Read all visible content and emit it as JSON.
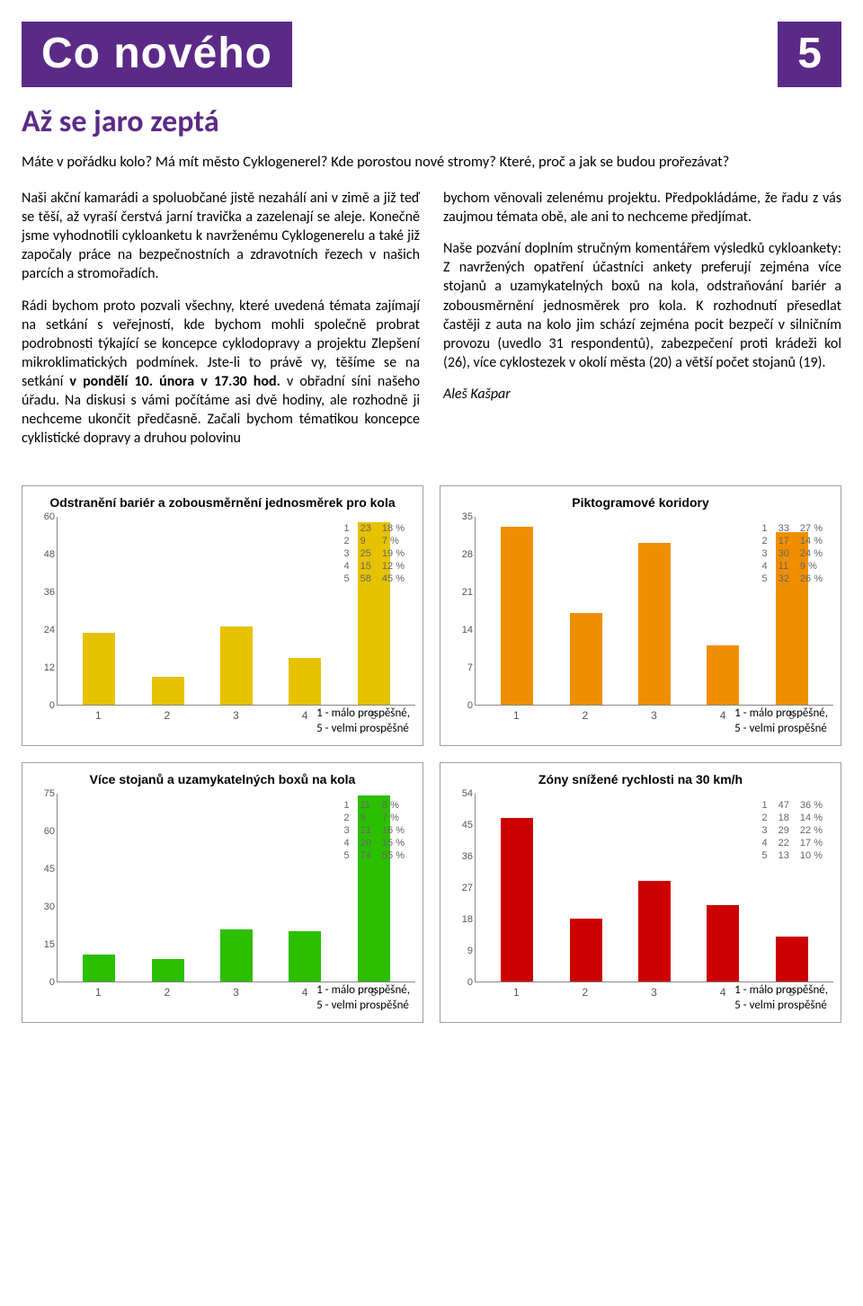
{
  "header": {
    "section_title": "Co nového",
    "page_number": "5",
    "bar_color": "#5b2a86",
    "text_color": "#ffffff"
  },
  "article": {
    "title": "Až se jaro zeptá",
    "title_color": "#5b2a86",
    "lead": "Máte v pořádku kolo? Má mít město Cyklogenerel? Kde porostou nové stromy? Které, proč a jak se budou prořezávat?",
    "p1": "Naši akční kamarádi a spoluobčané jistě nezahálí ani v zimě a již teď se těší, až vyraší čerstvá jarní travička a zazelenají se aleje. Konečně jsme vyhodnotili cykloanketu k navrženému Cyklogenerelu a také již započaly práce na bezpečnostních a zdravotních řezech v našich parcích a stromořadích.",
    "p2_a": "Rádi bychom proto pozvali všechny, které uvedená témata zajímají na setkání s veřejností, kde bychom mohli společně probrat podrobnosti týkající se koncepce cyklodopravy a projektu Zlepšení mikroklimatických podmínek. Jste-li to právě vy, těšíme se na setkání ",
    "p2_b": "v pondělí 10. února v 17.30 hod.",
    "p2_c": " v obřadní síni našeho úřadu. Na diskusi s vámi počítáme asi dvě hodiny, ale rozhodně ji nechceme ukončit předčasně. Začali bychom tématikou koncepce cyklistické dopravy a druhou polovinu",
    "p3": "bychom věnovali zelenému projektu. Předpokládáme, že řadu z vás zaujmou témata obě, ale ani to nechceme předjímat.",
    "p4": "Naše pozvání doplním stručným komentářem výsledků cykloankety: Z navržených opatření účastníci ankety preferují zejména více stojanů a uzamykatelných boxů na kola, odstraňování bariér a zobousměrnění jednosměrek pro kola. K rozhodnutí přesedlat častěji z auta na kolo jim schází zejména pocit bezpečí v silničním provozu (uvedlo 31 respondentů), zabezpečení proti krádeži kol (26), více cyklostezek v okolí města (20) a větší počet stojanů (19).",
    "author": "Aleš Kašpar"
  },
  "legend_text": {
    "line1": "1 - málo prospěšné,",
    "line2": "5 - velmi prospěšné"
  },
  "charts": [
    {
      "title": "Odstranění bariér a zobousměrnění jednosměrek pro kola",
      "type": "bar",
      "bar_color": "#e6c200",
      "ymax": 60,
      "yticks": [
        0,
        12,
        24,
        36,
        48,
        60
      ],
      "categories": [
        "1",
        "2",
        "3",
        "4",
        "5"
      ],
      "values": [
        23,
        9,
        25,
        15,
        58
      ],
      "rows": [
        [
          "1",
          "23",
          "18 %"
        ],
        [
          "2",
          "9",
          "7 %"
        ],
        [
          "3",
          "25",
          "19 %"
        ],
        [
          "4",
          "15",
          "12 %"
        ],
        [
          "5",
          "58",
          "45 %"
        ]
      ]
    },
    {
      "title": "Piktogramové koridory",
      "type": "bar",
      "bar_color": "#ef8f00",
      "ymax": 35,
      "yticks": [
        0,
        7,
        14,
        21,
        28,
        35
      ],
      "categories": [
        "1",
        "2",
        "3",
        "4",
        "5"
      ],
      "values": [
        33,
        17,
        30,
        11,
        32
      ],
      "rows": [
        [
          "1",
          "33",
          "27 %"
        ],
        [
          "2",
          "17",
          "14 %"
        ],
        [
          "3",
          "30",
          "24 %"
        ],
        [
          "4",
          "11",
          "9 %"
        ],
        [
          "5",
          "32",
          "26 %"
        ]
      ]
    },
    {
      "title": "Více stojanů a uzamykatelných boxů na kola",
      "type": "bar",
      "bar_color": "#2bbf00",
      "ymax": 75,
      "yticks": [
        0,
        15,
        30,
        45,
        60,
        75
      ],
      "categories": [
        "1",
        "2",
        "3",
        "4",
        "5"
      ],
      "values": [
        11,
        9,
        21,
        20,
        74
      ],
      "rows": [
        [
          "1",
          "11",
          "8 %"
        ],
        [
          "2",
          "9",
          "7 %"
        ],
        [
          "3",
          "21",
          "16 %"
        ],
        [
          "4",
          "20",
          "15 %"
        ],
        [
          "5",
          "74",
          "55 %"
        ]
      ]
    },
    {
      "title": "Zóny snížené rychlosti na 30 km/h",
      "type": "bar",
      "bar_color": "#cc0000",
      "ymax": 54,
      "yticks": [
        0,
        9,
        18,
        27,
        36,
        45,
        54
      ],
      "categories": [
        "1",
        "2",
        "3",
        "4",
        "5"
      ],
      "values": [
        47,
        18,
        29,
        22,
        13
      ],
      "rows": [
        [
          "1",
          "47",
          "36 %"
        ],
        [
          "2",
          "18",
          "14 %"
        ],
        [
          "3",
          "29",
          "22 %"
        ],
        [
          "4",
          "22",
          "17 %"
        ],
        [
          "5",
          "13",
          "10 %"
        ]
      ]
    }
  ]
}
